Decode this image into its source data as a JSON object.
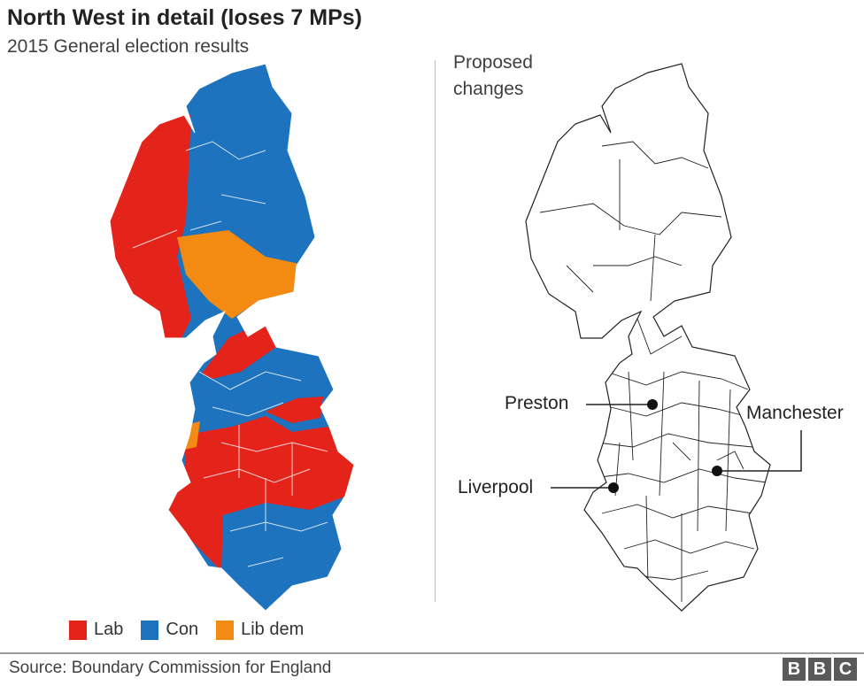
{
  "header": {
    "title": "North West in detail (loses 7 MPs)",
    "subtitle": "2015 General election results"
  },
  "right_panel": {
    "title": "Proposed changes"
  },
  "cities": [
    {
      "name": "Preston"
    },
    {
      "name": "Manchester"
    },
    {
      "name": "Liverpool"
    }
  ],
  "legend": [
    {
      "label": "Lab",
      "color": "#e4231b"
    },
    {
      "label": "Con",
      "color": "#1e73be"
    },
    {
      "label": "Lib dem",
      "color": "#f38a11"
    }
  ],
  "footer": {
    "source": "Source: Boundary Commission for England",
    "logo": [
      "B",
      "B",
      "C"
    ]
  }
}
